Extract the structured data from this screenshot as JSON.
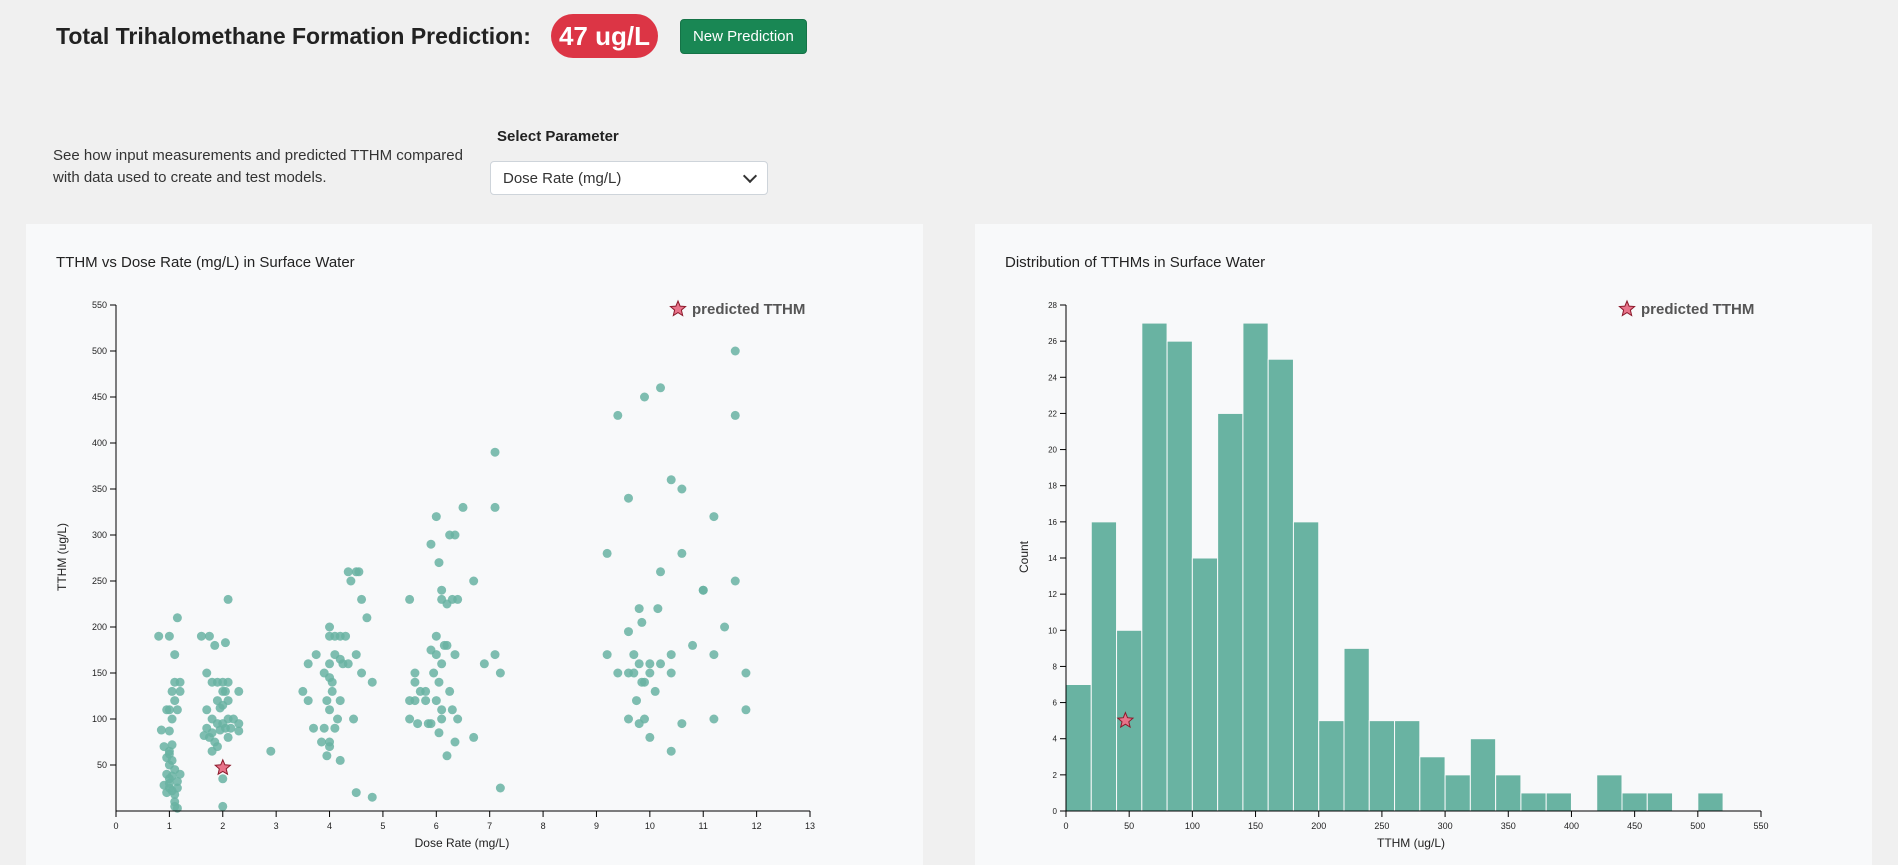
{
  "header": {
    "title": "Total Trihalomethane Formation Prediction:",
    "prediction": "47 ug/L",
    "new_prediction_label": "New Prediction"
  },
  "controls": {
    "description": "See how input measurements and predicted TTHM compared with data used to create and test models.",
    "select_label": "Select Parameter",
    "selected": "Dose Rate (mg/L)"
  },
  "colors": {
    "accent": "#dc3545",
    "success": "#198754",
    "point": "#69b3a2",
    "star": "#e8738a"
  },
  "scatter": {
    "title": "TTHM vs Dose Rate (mg/L) in Surface Water",
    "legend": "predicted TTHM",
    "xlabel": "Dose Rate (mg/L)",
    "ylabel": "TTHM (ug/L)"
  },
  "histogram": {
    "title": "Distribution of TTHMs in Surface Water",
    "legend": "predicted TTHM",
    "xlabel": "TTHM (ug/L)",
    "ylabel": "Count"
  },
  "chart_data": [
    {
      "type": "scatter",
      "xlim": [
        0,
        13
      ],
      "ylim": [
        0,
        550
      ],
      "xticks": [
        0,
        1,
        2,
        3,
        4,
        5,
        6,
        7,
        8,
        9,
        10,
        11,
        12,
        13
      ],
      "yticks": [
        50,
        100,
        150,
        200,
        250,
        300,
        350,
        400,
        450,
        500,
        550
      ],
      "points": [
        [
          0.8,
          190
        ],
        [
          1.0,
          190
        ],
        [
          1.15,
          210
        ],
        [
          1.1,
          140
        ],
        [
          1.05,
          130
        ],
        [
          1.2,
          140
        ],
        [
          1.1,
          120
        ],
        [
          1.15,
          110
        ],
        [
          1.1,
          170
        ],
        [
          1.2,
          130
        ],
        [
          0.85,
          88
        ],
        [
          1.0,
          87
        ],
        [
          1.0,
          110
        ],
        [
          0.95,
          110
        ],
        [
          1.05,
          100
        ],
        [
          0.9,
          70
        ],
        [
          1.0,
          62
        ],
        [
          0.95,
          58
        ],
        [
          1.05,
          55
        ],
        [
          1.0,
          50
        ],
        [
          1.1,
          45
        ],
        [
          0.95,
          40
        ],
        [
          1.05,
          38
        ],
        [
          1.0,
          35
        ],
        [
          1.15,
          32
        ],
        [
          0.9,
          28
        ],
        [
          1.0,
          25
        ],
        [
          1.05,
          22
        ],
        [
          0.95,
          20
        ],
        [
          1.1,
          18
        ],
        [
          1.1,
          10
        ],
        [
          1.1,
          5
        ],
        [
          1.15,
          3
        ],
        [
          1.0,
          65
        ],
        [
          1.05,
          72
        ],
        [
          1.2,
          40
        ],
        [
          1.15,
          25
        ],
        [
          1.0,
          30
        ],
        [
          1.6,
          190
        ],
        [
          1.75,
          190
        ],
        [
          1.85,
          180
        ],
        [
          2.1,
          230
        ],
        [
          2.05,
          183
        ],
        [
          1.7,
          150
        ],
        [
          1.8,
          140
        ],
        [
          1.9,
          140
        ],
        [
          2.0,
          130
        ],
        [
          2.1,
          120
        ],
        [
          1.7,
          110
        ],
        [
          1.8,
          100
        ],
        [
          1.9,
          95
        ],
        [
          2.0,
          140
        ],
        [
          2.05,
          130
        ],
        [
          2.1,
          140
        ],
        [
          2.3,
          130
        ],
        [
          2.3,
          95
        ],
        [
          2.3,
          87
        ],
        [
          1.65,
          82
        ],
        [
          1.75,
          80
        ],
        [
          1.85,
          75
        ],
        [
          1.9,
          70
        ],
        [
          1.8,
          65
        ],
        [
          1.95,
          88
        ],
        [
          2.05,
          90
        ],
        [
          2.1,
          80
        ],
        [
          1.9,
          120
        ],
        [
          2.0,
          115
        ],
        [
          2.1,
          100
        ],
        [
          1.7,
          90
        ],
        [
          1.95,
          112
        ],
        [
          2.0,
          35
        ],
        [
          2.0,
          5
        ],
        [
          2.0,
          95
        ],
        [
          1.8,
          85
        ],
        [
          2.15,
          90
        ],
        [
          2.2,
          100
        ],
        [
          2.9,
          65
        ],
        [
          3.5,
          130
        ],
        [
          3.6,
          160
        ],
        [
          3.75,
          170
        ],
        [
          4.0,
          200
        ],
        [
          4.0,
          190
        ],
        [
          4.1,
          190
        ],
        [
          4.2,
          190
        ],
        [
          3.9,
          150
        ],
        [
          4.0,
          160
        ],
        [
          4.1,
          170
        ],
        [
          4.2,
          165
        ],
        [
          4.35,
          160
        ],
        [
          4.5,
          170
        ],
        [
          4.3,
          190
        ],
        [
          4.5,
          260
        ],
        [
          4.4,
          250
        ],
        [
          4.35,
          260
        ],
        [
          4.55,
          260
        ],
        [
          4.6,
          230
        ],
        [
          4.7,
          210
        ],
        [
          3.95,
          120
        ],
        [
          4.05,
          130
        ],
        [
          4.0,
          110
        ],
        [
          4.15,
          100
        ],
        [
          3.9,
          90
        ],
        [
          4.1,
          90
        ],
        [
          4.0,
          75
        ],
        [
          3.95,
          60
        ],
        [
          4.0,
          70
        ],
        [
          4.2,
          120
        ],
        [
          3.6,
          120
        ],
        [
          3.7,
          90
        ],
        [
          3.85,
          75
        ],
        [
          4.05,
          140
        ],
        [
          4.0,
          145
        ],
        [
          4.25,
          160
        ],
        [
          4.45,
          100
        ],
        [
          4.6,
          150
        ],
        [
          4.8,
          140
        ],
        [
          4.2,
          55
        ],
        [
          4.5,
          20
        ],
        [
          4.8,
          15
        ],
        [
          5.5,
          230
        ],
        [
          5.6,
          150
        ],
        [
          5.6,
          140
        ],
        [
          5.7,
          130
        ],
        [
          5.6,
          120
        ],
        [
          5.5,
          120
        ],
        [
          5.5,
          100
        ],
        [
          5.65,
          95
        ],
        [
          5.8,
          130
        ],
        [
          5.85,
          95
        ],
        [
          5.9,
          290
        ],
        [
          6.0,
          320
        ],
        [
          6.05,
          270
        ],
        [
          6.1,
          230
        ],
        [
          6.1,
          240
        ],
        [
          6.2,
          225
        ],
        [
          6.3,
          230
        ],
        [
          6.25,
          300
        ],
        [
          6.35,
          300
        ],
        [
          6.5,
          330
        ],
        [
          6.4,
          230
        ],
        [
          6.7,
          250
        ],
        [
          6.0,
          190
        ],
        [
          6.0,
          170
        ],
        [
          6.1,
          160
        ],
        [
          6.15,
          180
        ],
        [
          6.2,
          180
        ],
        [
          6.35,
          170
        ],
        [
          5.9,
          175
        ],
        [
          5.95,
          150
        ],
        [
          6.05,
          140
        ],
        [
          6.0,
          120
        ],
        [
          6.1,
          100
        ],
        [
          6.25,
          130
        ],
        [
          6.3,
          110
        ],
        [
          6.4,
          100
        ],
        [
          6.05,
          85
        ],
        [
          6.2,
          60
        ],
        [
          6.35,
          75
        ],
        [
          6.7,
          80
        ],
        [
          5.8,
          120
        ],
        [
          5.9,
          95
        ],
        [
          6.1,
          110
        ],
        [
          7.1,
          390
        ],
        [
          7.1,
          330
        ],
        [
          6.9,
          160
        ],
        [
          7.1,
          170
        ],
        [
          7.2,
          150
        ],
        [
          7.2,
          25
        ],
        [
          9.4,
          430
        ],
        [
          9.9,
          450
        ],
        [
          10.2,
          460
        ],
        [
          9.2,
          280
        ],
        [
          9.6,
          340
        ],
        [
          10.4,
          360
        ],
        [
          10.6,
          350
        ],
        [
          9.6,
          195
        ],
        [
          9.8,
          220
        ],
        [
          9.85,
          205
        ],
        [
          10.0,
          160
        ],
        [
          10.15,
          220
        ],
        [
          10.2,
          260
        ],
        [
          10.6,
          280
        ],
        [
          10.8,
          180
        ],
        [
          11.0,
          240
        ],
        [
          11.2,
          320
        ],
        [
          11.4,
          200
        ],
        [
          11.6,
          250
        ],
        [
          11.8,
          150
        ],
        [
          11.6,
          430
        ],
        [
          11.6,
          500
        ],
        [
          9.2,
          170
        ],
        [
          9.4,
          150
        ],
        [
          9.6,
          150
        ],
        [
          9.8,
          160
        ],
        [
          10.0,
          150
        ],
        [
          9.9,
          140
        ],
        [
          10.1,
          130
        ],
        [
          10.4,
          170
        ],
        [
          10.4,
          150
        ],
        [
          9.75,
          120
        ],
        [
          9.6,
          100
        ],
        [
          9.8,
          95
        ],
        [
          9.9,
          100
        ],
        [
          10.0,
          80
        ],
        [
          10.4,
          65
        ],
        [
          10.6,
          95
        ],
        [
          11.2,
          100
        ],
        [
          11.8,
          110
        ],
        [
          9.7,
          170
        ],
        [
          9.85,
          140
        ],
        [
          9.7,
          150
        ],
        [
          10.2,
          160
        ],
        [
          11.0,
          240
        ],
        [
          11.2,
          170
        ]
      ],
      "predicted": [
        2.0,
        47
      ]
    },
    {
      "type": "bar",
      "xlim": [
        0,
        550
      ],
      "ylim": [
        0,
        28
      ],
      "xticks": [
        0,
        50,
        100,
        150,
        200,
        250,
        300,
        350,
        400,
        450,
        500,
        550
      ],
      "yticks": [
        0,
        2,
        4,
        6,
        8,
        10,
        12,
        14,
        16,
        18,
        20,
        22,
        24,
        26,
        28
      ],
      "bin_width": 20,
      "bin_edges": [
        0,
        20,
        40,
        60,
        80,
        100,
        120,
        140,
        160,
        180,
        200,
        220,
        240,
        260,
        280,
        300,
        320,
        340,
        360,
        380,
        400,
        420,
        440,
        460,
        480,
        500,
        520
      ],
      "counts": [
        7,
        16,
        10,
        27,
        26,
        14,
        22,
        27,
        25,
        16,
        5,
        9,
        5,
        5,
        3,
        2,
        4,
        2,
        1,
        1,
        0,
        2,
        1,
        1,
        0,
        1
      ],
      "predicted": [
        47,
        5
      ]
    }
  ]
}
